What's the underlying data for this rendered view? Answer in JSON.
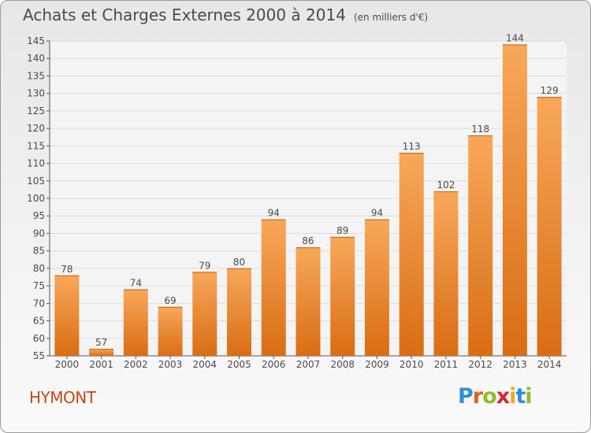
{
  "title": "Achats et Charges Externes 2000 à 2014",
  "subtitle": "(en milliers d'€)",
  "place": "HYMONT",
  "logo": {
    "text": "Proxiti",
    "letters": [
      {
        "ch": "P",
        "color": "#2e8fd6"
      },
      {
        "ch": "r",
        "color": "#e95d1c"
      },
      {
        "ch": "o",
        "color": "#8bbf2a"
      },
      {
        "ch": "x",
        "color": "#d7262f"
      },
      {
        "ch": "i",
        "color": "#f2a81d"
      },
      {
        "ch": "t",
        "color": "#2e8fd6"
      },
      {
        "ch": "i",
        "color": "#8bbf2a"
      }
    ]
  },
  "colors": {
    "bar_light": "#f8a85a",
    "bar_dark": "#d96d14",
    "text": "#4a4a4a",
    "place": "#c8461a"
  },
  "chart_data": {
    "type": "bar",
    "title": "Achats et Charges Externes 2000 à 2014",
    "subtitle": "(en milliers d'€)",
    "categories": [
      "2000",
      "2001",
      "2002",
      "2003",
      "2004",
      "2005",
      "2006",
      "2007",
      "2008",
      "2009",
      "2010",
      "2011",
      "2012",
      "2013",
      "2014"
    ],
    "values": [
      78,
      57,
      74,
      69,
      79,
      80,
      94,
      86,
      89,
      94,
      113,
      102,
      118,
      144,
      129
    ],
    "ylim": [
      55,
      145
    ],
    "yticks": [
      55,
      60,
      65,
      70,
      75,
      80,
      85,
      90,
      95,
      100,
      105,
      110,
      115,
      120,
      125,
      130,
      135,
      140,
      145
    ],
    "grid": true
  }
}
